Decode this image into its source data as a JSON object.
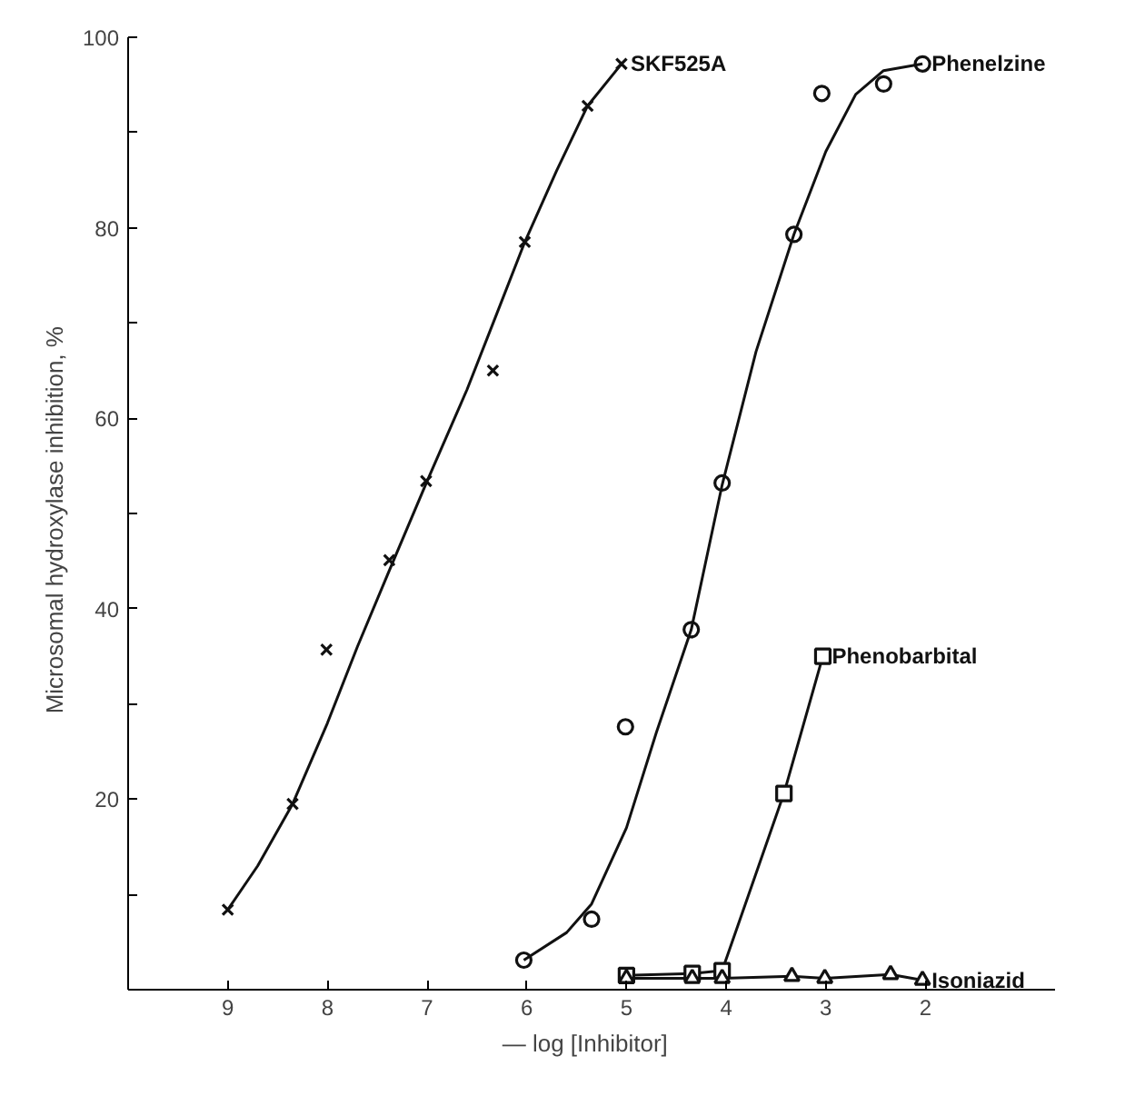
{
  "chart_data": {
    "type": "scatter",
    "xlabel": "— log   [Inhibitor]",
    "ylabel": "Microsomal hydroxylase inhibition,   %",
    "xlim": [
      10,
      0.7
    ],
    "ylim": [
      0,
      100
    ],
    "xticks": [
      9,
      8,
      7,
      6,
      5,
      4,
      3,
      2
    ],
    "yticks": [
      {
        "value": 10,
        "label": null
      },
      20,
      {
        "value": 30,
        "label": null
      },
      40,
      {
        "value": 50,
        "label": null
      },
      60,
      {
        "value": 70,
        "label": null
      },
      80,
      {
        "value": 90,
        "label": null
      },
      100
    ],
    "grid": false,
    "series": [
      {
        "name": "SKF525A",
        "color": "#111111",
        "marker": "cross",
        "x": [
          9,
          8.35,
          8.01,
          7.38,
          7.01,
          6.34,
          6.02,
          5.39,
          5.05
        ],
        "values": [
          8.4,
          19.5,
          35.7,
          45.1,
          53.4,
          65,
          78.5,
          92.8,
          97.2
        ]
      },
      {
        "type": "line",
        "color": "#111111",
        "marker": "none",
        "x": [
          9,
          8.7,
          8.35,
          8,
          7.7,
          7.38,
          7,
          6.6,
          6.3,
          6.02,
          5.7,
          5.39,
          5.05
        ],
        "values": [
          8.4,
          13,
          19.5,
          28,
          36,
          44,
          53.4,
          63,
          71,
          78.5,
          86,
          92.8,
          97.2
        ]
      },
      {
        "name": "Phenelzine",
        "color": "#111111",
        "marker": "circle",
        "x": [
          6.03,
          5.35,
          5.01,
          4.35,
          4.04,
          3.32,
          3.04,
          2.42,
          2.03
        ],
        "values": [
          3.1,
          7.4,
          27.6,
          37.8,
          53.2,
          79.3,
          94.1,
          95.1,
          97.2
        ]
      },
      {
        "type": "line",
        "color": "#111111",
        "marker": "none",
        "x": [
          6.03,
          5.6,
          5.35,
          5,
          4.7,
          4.35,
          4.04,
          3.7,
          3.32,
          3.0,
          2.7,
          2.42,
          2.03
        ],
        "values": [
          3.1,
          6,
          9,
          17,
          27,
          37.8,
          53,
          67,
          79.3,
          88,
          94,
          96.5,
          97.2
        ]
      },
      {
        "name": "Phenobarbital",
        "type": "line",
        "color": "#111111",
        "marker": "square",
        "x": [
          5.0,
          4.34,
          4.04,
          3.42,
          3.03
        ],
        "values": [
          1.5,
          1.7,
          2.0,
          20.6,
          35.0
        ]
      },
      {
        "name": "Isoniazid",
        "type": "line",
        "color": "#111111",
        "marker": "triangle",
        "x": [
          5.0,
          4.34,
          4.04,
          3.34,
          3.01,
          2.35,
          2.03
        ],
        "values": [
          1.2,
          1.2,
          1.2,
          1.4,
          1.2,
          1.6,
          1.0
        ]
      }
    ]
  }
}
